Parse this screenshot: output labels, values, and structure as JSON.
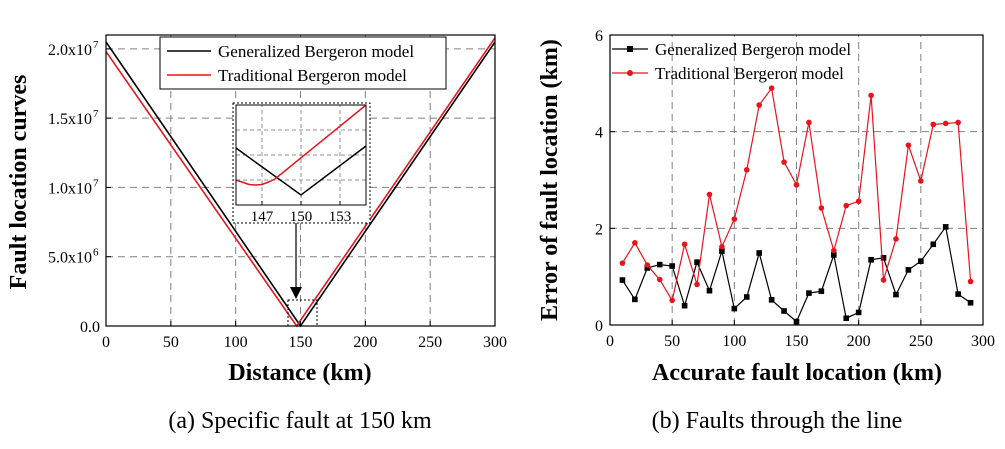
{
  "chart_data": [
    {
      "id": "a",
      "type": "line",
      "caption": "(a) Specific fault at 150 km",
      "xlabel": "Distance (km)",
      "ylabel": "Fault location curves",
      "xlim": [
        0,
        300
      ],
      "ylim": [
        0,
        21000000
      ],
      "xticks": [
        0,
        50,
        100,
        150,
        200,
        250,
        300
      ],
      "xtick_labels": [
        "0",
        "50",
        "100",
        "150",
        "200",
        "250",
        "300"
      ],
      "yticks": [
        0,
        5000000,
        10000000,
        15000000,
        20000000
      ],
      "ytick_labels": [
        {
          "base": "0.0",
          "exp": ""
        },
        {
          "base": "5.0x10",
          "exp": "6"
        },
        {
          "base": "1.0x10",
          "exp": "7"
        },
        {
          "base": "1.5x10",
          "exp": "7"
        },
        {
          "base": "2.0x10",
          "exp": "7"
        }
      ],
      "grid": true,
      "legend_position": "top-center",
      "series": [
        {
          "name": "Generalized Bergeron model",
          "color": "#000000",
          "x": [
            0,
            150,
            300
          ],
          "y": [
            20500000,
            0,
            20500000
          ]
        },
        {
          "name": "Traditional Bergeron model",
          "color": "#e8141c",
          "x": [
            0,
            147,
            300
          ],
          "y": [
            19800000,
            0,
            20800000
          ]
        }
      ],
      "inset": {
        "xlim": [
          145,
          155
        ],
        "xticks": [
          147,
          150,
          153
        ],
        "xtick_labels": [
          "147",
          "150",
          "153"
        ],
        "ylim": [
          0,
          10
        ],
        "series": [
          {
            "name": "Generalized Bergeron model",
            "x": [
              145,
              150,
              155
            ],
            "y": [
              5.7,
              1.0,
              5.9
            ]
          },
          {
            "name": "Traditional Bergeron model",
            "x": [
              145,
              146,
              146.5,
              147,
              147.5,
              148,
              155
            ],
            "y": [
              2.5,
              2.05,
              2.0,
              2.05,
              2.3,
              2.6,
              10.0
            ]
          }
        ]
      }
    },
    {
      "id": "b",
      "type": "line",
      "caption": "(b) Faults through the line",
      "xlabel": "Accurate fault location (km)",
      "ylabel": "Error of fault location (km)",
      "xlim": [
        0,
        300
      ],
      "ylim": [
        0,
        6
      ],
      "xticks": [
        0,
        50,
        100,
        150,
        200,
        250,
        300
      ],
      "xtick_labels": [
        "0",
        "50",
        "100",
        "150",
        "200",
        "250",
        "300"
      ],
      "yticks": [
        0,
        2,
        4,
        6
      ],
      "ytick_labels": [
        "0",
        "2",
        "4",
        "6"
      ],
      "grid": true,
      "legend_position": "top-left",
      "series": [
        {
          "name": "Generalized Bergeron model",
          "color": "#000000",
          "marker": "square",
          "x": [
            10,
            20,
            30,
            40,
            50,
            60,
            70,
            80,
            90,
            100,
            110,
            120,
            130,
            140,
            150,
            160,
            170,
            180,
            190,
            200,
            210,
            220,
            230,
            240,
            250,
            260,
            270,
            280,
            290
          ],
          "y": [
            0.93,
            0.53,
            1.18,
            1.25,
            1.22,
            0.4,
            1.3,
            0.71,
            1.53,
            0.34,
            0.58,
            1.49,
            0.52,
            0.29,
            0.07,
            0.66,
            0.7,
            1.45,
            0.14,
            0.26,
            1.35,
            1.39,
            0.63,
            1.14,
            1.32,
            1.67,
            2.03,
            0.64,
            0.46
          ]
        },
        {
          "name": "Traditional Bergeron model",
          "color": "#e8141c",
          "marker": "circle",
          "x": [
            10,
            20,
            30,
            40,
            50,
            60,
            70,
            80,
            90,
            100,
            110,
            120,
            130,
            140,
            150,
            160,
            170,
            180,
            190,
            200,
            210,
            220,
            230,
            240,
            250,
            260,
            270,
            280,
            290
          ],
          "y": [
            1.28,
            1.7,
            1.24,
            0.94,
            0.51,
            1.67,
            0.84,
            2.7,
            1.62,
            2.19,
            3.21,
            4.55,
            4.9,
            3.37,
            2.9,
            4.19,
            2.42,
            1.54,
            2.47,
            2.56,
            4.75,
            0.93,
            1.78,
            3.72,
            2.98,
            4.15,
            4.17,
            4.19,
            0.9
          ]
        }
      ]
    }
  ]
}
